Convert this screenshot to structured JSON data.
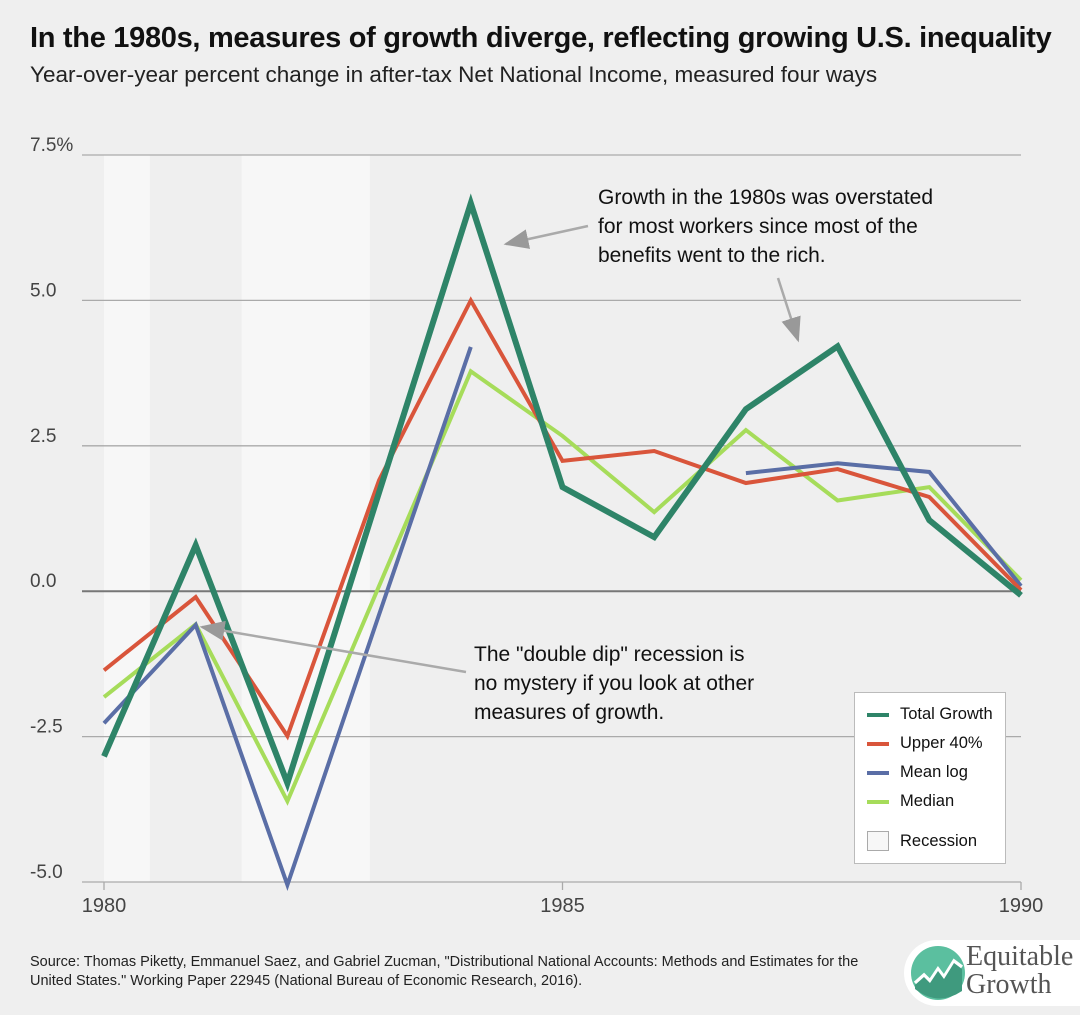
{
  "title": "In the 1980s, measures of growth diverge, reflecting growing U.S. inequality",
  "subtitle": "Year-over-year percent change in after-tax Net National Income, measured four ways",
  "chart_data": {
    "type": "line",
    "x": [
      1980,
      1981,
      1982,
      1983,
      1984,
      1985,
      1986,
      1987,
      1988,
      1989,
      1990
    ],
    "xlim": [
      1980,
      1990
    ],
    "ylim": [
      -5,
      7.5
    ],
    "xticks": [
      {
        "v": 1980,
        "label": "1980"
      },
      {
        "v": 1985,
        "label": "1985"
      },
      {
        "v": 1990,
        "label": "1990"
      }
    ],
    "yticks": [
      {
        "v": 7.5,
        "label": "7.5%"
      },
      {
        "v": 5,
        "label": "5.0"
      },
      {
        "v": 2.5,
        "label": "2.5"
      },
      {
        "v": 0,
        "label": "0.0"
      },
      {
        "v": -2.5,
        "label": "-2.5"
      },
      {
        "v": -5,
        "label": "-5.0"
      }
    ],
    "grid": true,
    "legend_position": "bottom-right",
    "series": [
      {
        "name": "Total Growth",
        "color": "#2e8468",
        "values": [
          -2.84,
          0.79,
          -3.3,
          1.7,
          6.67,
          1.79,
          0.93,
          3.13,
          4.21,
          1.22,
          -0.07
        ]
      },
      {
        "name": "Upper 40%",
        "color": "#d9553b",
        "values": [
          -1.36,
          -0.1,
          -2.49,
          1.91,
          5.0,
          2.24,
          2.41,
          1.86,
          2.1,
          1.62,
          0.02
        ]
      },
      {
        "name": "Mean log",
        "color": "#5a6ea6",
        "values": [
          -2.27,
          -0.58,
          -5.05,
          -0.4,
          4.2,
          null,
          null,
          2.03,
          2.2,
          2.05,
          0.09
        ]
      },
      {
        "name": "Median",
        "color": "#a6dc5a",
        "values": [
          -1.82,
          -0.57,
          -3.61,
          0.09,
          3.78,
          2.67,
          1.36,
          2.77,
          1.56,
          1.79,
          0.19
        ]
      }
    ],
    "recessions": [
      [
        1980.0,
        1980.5
      ],
      [
        1981.5,
        1982.9
      ]
    ],
    "recession_label": "Recession",
    "annotations": [
      {
        "text": [
          "Growth in the 1980s was overstated",
          "for most workers since most of the",
          "benefits went to the rich."
        ]
      },
      {
        "text": [
          "The \"double dip\" recession is",
          "no mystery if you look at other",
          "measures of growth."
        ]
      }
    ]
  },
  "source": "Source: Thomas Piketty, Emmanuel Saez, and Gabriel Zucman, \"Distributional National Accounts: Methods and Estimates for the United States.\" Working Paper 22945 (National Bureau of Economic Research, 2016).",
  "logo": {
    "line1": "Equitable",
    "line2": "Growth"
  }
}
